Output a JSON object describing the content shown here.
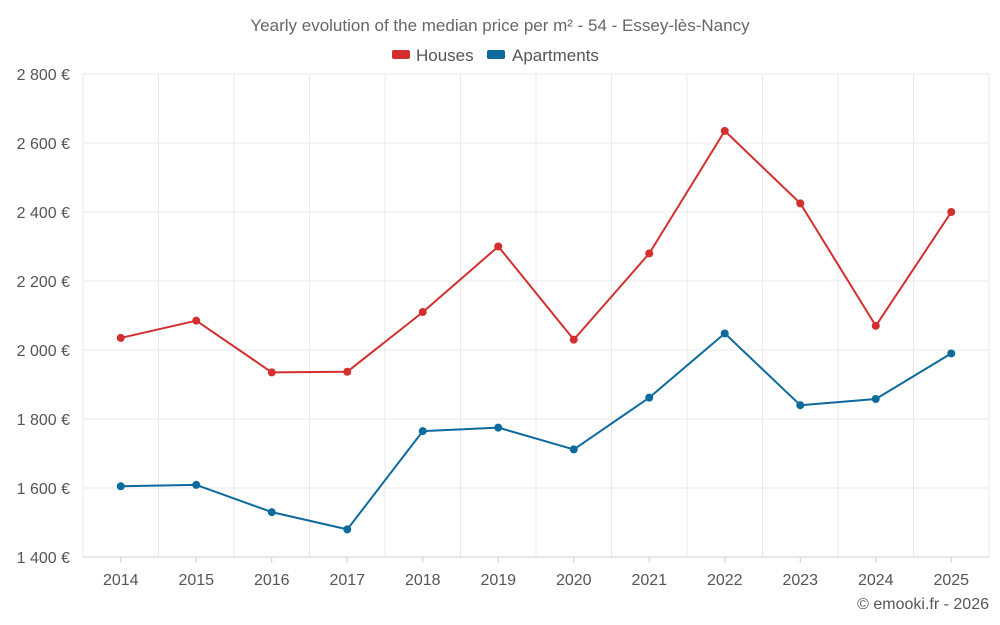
{
  "chart_data": {
    "type": "line",
    "title": "Yearly evolution of the median price per m² - 54 - Essey-lès-Nancy",
    "categories": [
      "2014",
      "2015",
      "2016",
      "2017",
      "2018",
      "2019",
      "2020",
      "2021",
      "2022",
      "2023",
      "2024",
      "2025"
    ],
    "series": [
      {
        "name": "Houses",
        "color": "#d32f2f",
        "values": [
          2035,
          2085,
          1935,
          1937,
          2110,
          2300,
          2030,
          2280,
          2635,
          2425,
          2070,
          2400
        ]
      },
      {
        "name": "Apartments",
        "color": "#0d6a9c",
        "values": [
          1605,
          1609,
          1530,
          1480,
          1765,
          1775,
          1712,
          1862,
          2048,
          1840,
          1858,
          1990
        ]
      }
    ],
    "ylim": [
      1400,
      2800
    ],
    "yticks": [
      1400,
      1600,
      1800,
      2000,
      2200,
      2400,
      2600,
      2800
    ],
    "ytick_labels": [
      "1 400 €",
      "1 600 €",
      "1 800 €",
      "2 000 €",
      "2 200 €",
      "2 400 €",
      "2 600 €",
      "2 800 €"
    ],
    "grid": true,
    "legend": "top-center",
    "credit": "© emooki.fr - 2026"
  }
}
